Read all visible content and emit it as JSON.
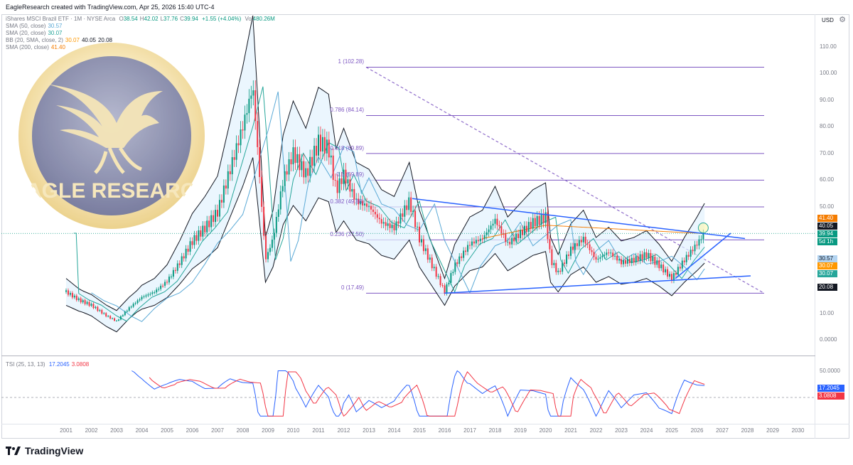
{
  "header": {
    "attribution": "EagleResearch created with TradingView.com, Apr 25, 2026 15:40 UTC-4"
  },
  "legend": {
    "symbol": "iShares MSCI Brazil ETF · 1M · NYSE Arca",
    "ohlc": [
      {
        "key": "O",
        "value": "38.54"
      },
      {
        "key": "H",
        "value": "42.02"
      },
      {
        "key": "L",
        "value": "37.76"
      },
      {
        "key": "C",
        "value": "39.94"
      }
    ],
    "change": "+1.55 (+4.04%)",
    "vol_key": "Vol",
    "vol_value": "480.26M",
    "indicators": [
      {
        "name": "SMA (50, close)",
        "values": [
          "30.57"
        ],
        "colors": [
          "#5aa9d6"
        ]
      },
      {
        "name": "SMA (20, close)",
        "values": [
          "30.07"
        ],
        "colors": [
          "#26a69a"
        ]
      },
      {
        "name": "BB (20, SMA, close, 2)",
        "values": [
          "30.07",
          "40.05",
          "20.08"
        ],
        "colors": [
          "#ff9800",
          "#131722",
          "#131722"
        ]
      },
      {
        "name": "SMA (200, close)",
        "values": [
          "41.40"
        ],
        "colors": [
          "#f57c00"
        ]
      }
    ],
    "tsi": {
      "name": "TSI (25, 13, 13)",
      "values": [
        "17.2045",
        "3.0808"
      ],
      "colors": [
        "#2962ff",
        "#f23645"
      ]
    }
  },
  "watermark": {
    "text": "EAGLE RESEARCH"
  },
  "price_axis": {
    "currency": "USD",
    "ticks": [
      "110.00",
      "100.00",
      "90.00",
      "80.00",
      "70.00",
      "60.00",
      "50.00",
      "40.00",
      "30.00",
      "20.00",
      "10.00",
      "0.0000"
    ],
    "labels": [
      {
        "text": "41.40",
        "color": "#f57c00",
        "fg": "#ffffff"
      },
      {
        "text": "40.05",
        "color": "#131722",
        "fg": "#ffffff"
      },
      {
        "text": "39.94",
        "color": "#089981",
        "fg": "#ffffff"
      },
      {
        "text": "5d 1h",
        "color": "#089981",
        "fg": "#ffffff"
      },
      {
        "text": "30.57",
        "color": "#b3d4f1",
        "fg": "#131722"
      },
      {
        "text": "30.07",
        "color": "#ff9800",
        "fg": "#ffffff"
      },
      {
        "text": "30.07",
        "color": "#26a69a",
        "fg": "#ffffff"
      },
      {
        "text": "20.08",
        "color": "#131722",
        "fg": "#ffffff"
      }
    ]
  },
  "tsi_axis": {
    "ticks": [
      "50.0000",
      "0.0000"
    ],
    "labels": [
      {
        "text": "17.2045",
        "color": "#2962ff"
      },
      {
        "text": "3.0808",
        "color": "#f23645"
      }
    ]
  },
  "time_axis": {
    "labels": [
      "2001",
      "2002",
      "2003",
      "2004",
      "2005",
      "2006",
      "2007",
      "2008",
      "2009",
      "2010",
      "2011",
      "2012",
      "2013",
      "2014",
      "2015",
      "2016",
      "2017",
      "2018",
      "2019",
      "2020",
      "2021",
      "2022",
      "2023",
      "2024",
      "2025",
      "2026",
      "2027",
      "2028",
      "2029",
      "2030"
    ]
  },
  "fibonacci": [
    {
      "label": "1 (102.28)",
      "price": 102.28
    },
    {
      "label": "0.786 (84.14)",
      "price": 84.14
    },
    {
      "label": "0.618 (69.89)",
      "price": 69.89
    },
    {
      "label": "0.5 (59.89)",
      "price": 59.89
    },
    {
      "label": "0.382 (49.88)",
      "price": 49.88
    },
    {
      "label": "0.236 (37.50)",
      "price": 37.5
    },
    {
      "label": "0 (17.49)",
      "price": 17.49
    }
  ],
  "colors": {
    "fib": "#7e57c2",
    "trend": "#2962ff",
    "up": "#089981",
    "down": "#f23645",
    "bb_fill": "#e3f2fd"
  },
  "footer": {
    "brand": "TradingView"
  }
}
